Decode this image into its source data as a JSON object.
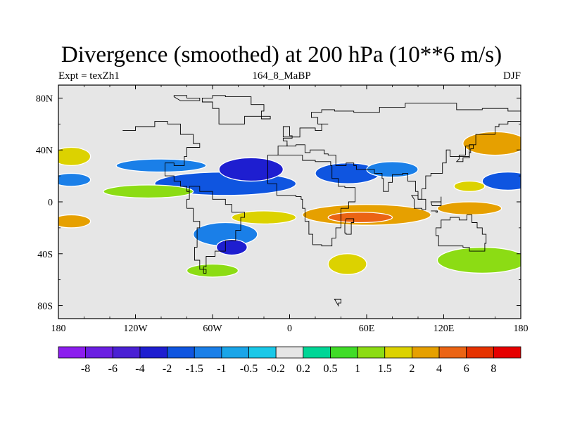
{
  "title": "Divergence (smoothed) at 200 hPa (10**6 m/s)",
  "left_string": "Expt = texZh1",
  "center_string": "164_8_MaBP",
  "right_string": "DJF",
  "colors": {
    "background_missing": "#e6e6e6",
    "contour_edge": "#ffffff",
    "coast": "#000000"
  },
  "chart_data": {
    "type": "heatmap",
    "title": "Divergence (smoothed) at 200 hPa (10**6 m/s)",
    "variable": "divergence",
    "units": "10**6 m/s",
    "level_hPa": 200,
    "x": {
      "label": "longitude",
      "range": [
        -180,
        180
      ],
      "ticks": [
        -180,
        -120,
        -60,
        0,
        60,
        120,
        180
      ],
      "tick_labels": [
        "180",
        "120W",
        "60W",
        "0",
        "60E",
        "120E",
        "180"
      ]
    },
    "y": {
      "label": "latitude",
      "range": [
        -90,
        90
      ],
      "ticks": [
        80,
        40,
        0,
        -40,
        -80
      ],
      "tick_labels": [
        "80N",
        "40N",
        "0",
        "40S",
        "80S"
      ]
    },
    "colorbar": {
      "labels": [
        "-8",
        "-6",
        "-4",
        "-2",
        "-1.5",
        "-1",
        "-0.5",
        "-0.2",
        "0.2",
        "0.5",
        "1",
        "1.5",
        "2",
        "4",
        "6",
        "8"
      ],
      "colors": [
        "#8c1eee",
        "#6b1fe2",
        "#4a20d4",
        "#1e1ed0",
        "#0f55e0",
        "#1a7fe8",
        "#1aa5e8",
        "#1ac8e8",
        "#e6e6e6",
        "#00d696",
        "#40dc28",
        "#8cdc14",
        "#dcd200",
        "#e6a000",
        "#eb6414",
        "#e63200",
        "#e60000"
      ]
    },
    "features": [
      {
        "kind": "ellipse",
        "lon": -50,
        "lat": 14,
        "rlon": 55,
        "rlat": 9,
        "level": -2
      },
      {
        "kind": "ellipse",
        "lon": -30,
        "lat": 25,
        "rlon": 25,
        "rlat": 9,
        "level": -4
      },
      {
        "kind": "ellipse",
        "lon": 45,
        "lat": 22,
        "rlon": 25,
        "rlat": 8,
        "level": -2
      },
      {
        "kind": "ellipse",
        "lon": 170,
        "lat": 16,
        "rlon": 20,
        "rlat": 7,
        "level": -2
      },
      {
        "kind": "ellipse",
        "lon": -100,
        "lat": 28,
        "rlon": 35,
        "rlat": 5,
        "level": -1.5
      },
      {
        "kind": "ellipse",
        "lon": -170,
        "lat": 17,
        "rlon": 15,
        "rlat": 5,
        "level": -1.5
      },
      {
        "kind": "ellipse",
        "lon": -50,
        "lat": -25,
        "rlon": 25,
        "rlat": 9,
        "level": -1.5
      },
      {
        "kind": "ellipse",
        "lon": -45,
        "lat": -35,
        "rlon": 12,
        "rlat": 6,
        "level": -4
      },
      {
        "kind": "ellipse",
        "lon": 80,
        "lat": 25,
        "rlon": 20,
        "rlat": 6,
        "level": -1.5
      },
      {
        "kind": "ellipse",
        "lon": 60,
        "lat": -10,
        "rlon": 50,
        "rlat": 8,
        "level": 2
      },
      {
        "kind": "ellipse",
        "lon": 55,
        "lat": -12,
        "rlon": 25,
        "rlat": 4,
        "level": 4
      },
      {
        "kind": "ellipse",
        "lon": 140,
        "lat": -5,
        "rlon": 25,
        "rlat": 5,
        "level": 2
      },
      {
        "kind": "ellipse",
        "lon": 160,
        "lat": 45,
        "rlon": 25,
        "rlat": 9,
        "level": 2
      },
      {
        "kind": "ellipse",
        "lon": -170,
        "lat": 35,
        "rlon": 15,
        "rlat": 7,
        "level": 1.5
      },
      {
        "kind": "ellipse",
        "lon": -170,
        "lat": -15,
        "rlon": 15,
        "rlat": 5,
        "level": 2
      },
      {
        "kind": "ellipse",
        "lon": -110,
        "lat": 8,
        "rlon": 35,
        "rlat": 5,
        "level": 1
      },
      {
        "kind": "ellipse",
        "lon": -20,
        "lat": -12,
        "rlon": 25,
        "rlat": 5,
        "level": 1.5
      },
      {
        "kind": "ellipse",
        "lon": 140,
        "lat": 12,
        "rlon": 12,
        "rlat": 4,
        "level": 1.5
      },
      {
        "kind": "ellipse",
        "lon": 45,
        "lat": -48,
        "rlon": 15,
        "rlat": 8,
        "level": 1.5
      },
      {
        "kind": "ellipse",
        "lon": -60,
        "lat": -53,
        "rlon": 20,
        "rlat": 5,
        "level": 1
      },
      {
        "kind": "ellipse",
        "lon": 150,
        "lat": -45,
        "rlon": 35,
        "rlat": 10,
        "level": 1
      }
    ]
  }
}
